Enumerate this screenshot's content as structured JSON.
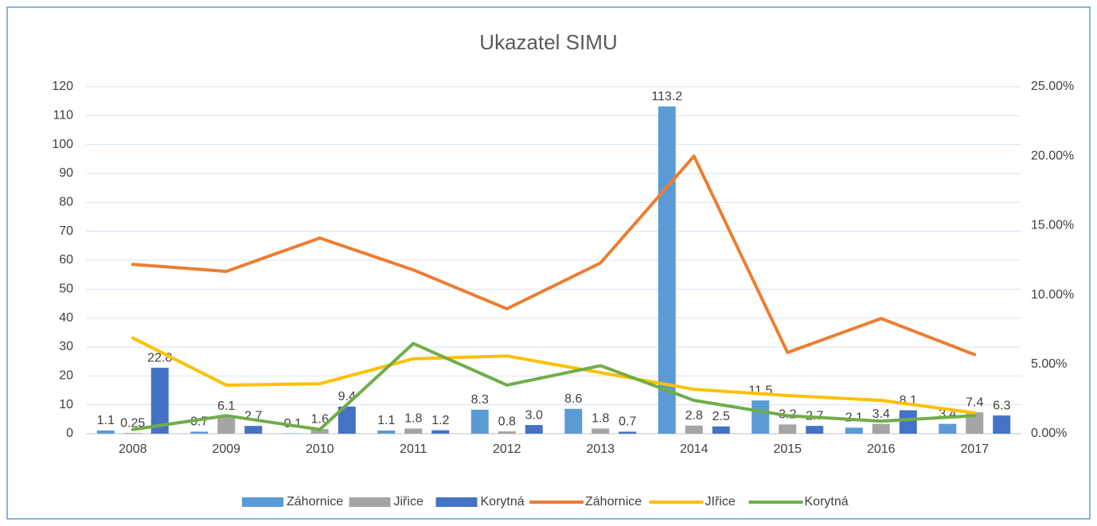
{
  "chart_data": {
    "type": "bar",
    "title": "Ukazatel SIMU",
    "categories": [
      "2008",
      "2009",
      "2010",
      "2011",
      "2012",
      "2013",
      "2014",
      "2015",
      "2016",
      "2017"
    ],
    "ylim": [
      0,
      120
    ],
    "yticks": [
      0,
      10,
      20,
      30,
      40,
      50,
      60,
      70,
      80,
      90,
      100,
      110,
      120
    ],
    "y2lim": [
      0,
      25
    ],
    "y2ticks": [
      {
        "value": 0,
        "label": "0.00%"
      },
      {
        "value": 5,
        "label": "5.00%"
      },
      {
        "value": 10,
        "label": "10.00%"
      },
      {
        "value": 15,
        "label": "15.00%"
      },
      {
        "value": 20,
        "label": "20.00%"
      },
      {
        "value": 25,
        "label": "25.00%"
      }
    ],
    "grid": true,
    "legend": "bottom",
    "series": [
      {
        "name": "Záhornice",
        "type": "bar",
        "color": "#5b9bd5",
        "values": [
          1.1,
          0.7,
          0.1,
          1.1,
          8.3,
          8.6,
          113.2,
          11.5,
          2.1,
          3.4
        ],
        "value_labels": [
          "1.1",
          "0.7",
          "0.1",
          "1.1",
          "8.3",
          "8.6",
          "113.2",
          "11.5",
          "2.1",
          "3.4"
        ]
      },
      {
        "name": "Jiřice",
        "type": "bar",
        "color": "#a5a5a5",
        "values": [
          0.25,
          6.1,
          1.6,
          1.8,
          0.8,
          1.8,
          2.8,
          3.2,
          3.4,
          7.4
        ],
        "value_labels": [
          "0.25",
          "6.1",
          "1.6",
          "1.8",
          "0.8",
          "1.8",
          "2.8",
          "3.2",
          "3.4",
          "7.4"
        ]
      },
      {
        "name": "Korytná",
        "type": "bar",
        "color": "#4472c4",
        "values": [
          22.8,
          2.7,
          9.4,
          1.2,
          3,
          0.7,
          2.5,
          2.7,
          8.1,
          6.3
        ],
        "value_labels": [
          "22.8",
          "2.7",
          "9.4",
          "1.2",
          "3.0",
          "0.7",
          "2.5",
          "2.7",
          "8.1",
          "6.3"
        ]
      },
      {
        "name": "Záhornice",
        "type": "line",
        "axis": "y2",
        "color": "#ed7d31",
        "values": [
          12.2,
          11.7,
          14.1,
          11.8,
          9.0,
          12.3,
          20.0,
          5.85,
          8.3,
          5.7
        ]
      },
      {
        "name": "JIřice",
        "type": "line",
        "axis": "y2",
        "color": "#ffc000",
        "values": [
          6.9,
          3.5,
          3.6,
          5.4,
          5.6,
          4.4,
          3.2,
          2.75,
          2.4,
          1.5
        ]
      },
      {
        "name": "Korytná",
        "type": "line",
        "axis": "y2",
        "color": "#70ad47",
        "values": [
          0.3,
          1.3,
          0.3,
          6.5,
          3.5,
          4.9,
          2.4,
          1.3,
          0.9,
          1.3
        ]
      }
    ]
  }
}
